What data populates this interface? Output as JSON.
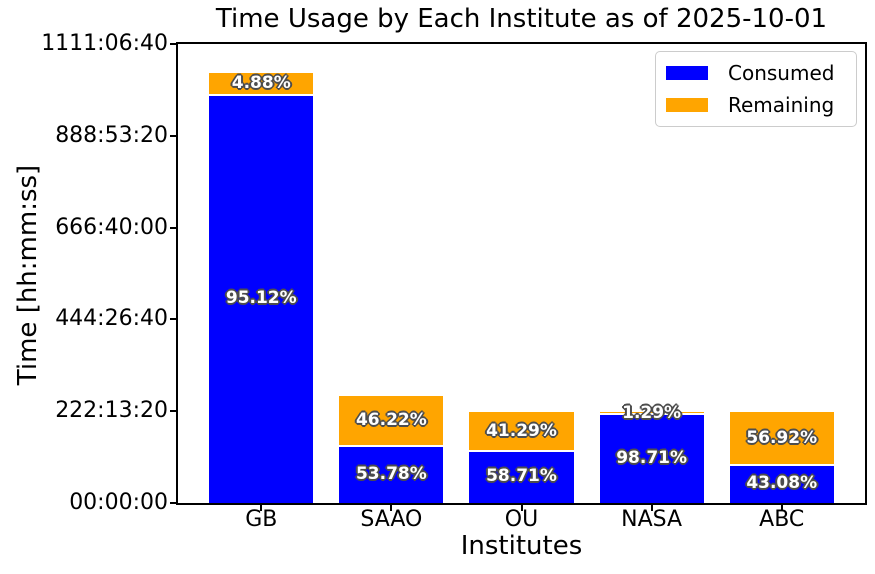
{
  "chart_data": {
    "type": "bar",
    "stacked": true,
    "title": "Time Usage by Each Institute as of 2025-10-01",
    "xlabel": "Institutes",
    "ylabel": "Time [hh:mm:ss]",
    "grid": false,
    "legend_position": "upper right",
    "ylim_seconds": [
      0,
      4000000
    ],
    "y_ticks": [
      {
        "label": "00:00:00",
        "seconds": 0
      },
      {
        "label": "222:13:20",
        "seconds": 800000
      },
      {
        "label": "444:26:40",
        "seconds": 1600000
      },
      {
        "label": "666:40:00",
        "seconds": 2400000
      },
      {
        "label": "888:53:20",
        "seconds": 3200000
      },
      {
        "label": "1111:06:40",
        "seconds": 4000000
      }
    ],
    "categories": [
      "GB",
      "SAAO",
      "OU",
      "NASA",
      "ABC"
    ],
    "totals_seconds_estimated": [
      3750000,
      936000,
      792000,
      792000,
      792000
    ],
    "series": [
      {
        "name": "Consumed",
        "color": "#0000ff",
        "values_seconds": [
          3567000,
          503400,
          465000,
          781800,
          341200
        ],
        "percent_labels": [
          "95.12%",
          "53.78%",
          "58.71%",
          "98.71%",
          "43.08%"
        ]
      },
      {
        "name": "Remaining",
        "color": "#ffa500",
        "values_seconds": [
          183000,
          432600,
          327000,
          10200,
          450800
        ],
        "percent_labels": [
          "4.88%",
          "46.22%",
          "41.29%",
          "1.29%",
          "56.92%"
        ]
      }
    ]
  }
}
